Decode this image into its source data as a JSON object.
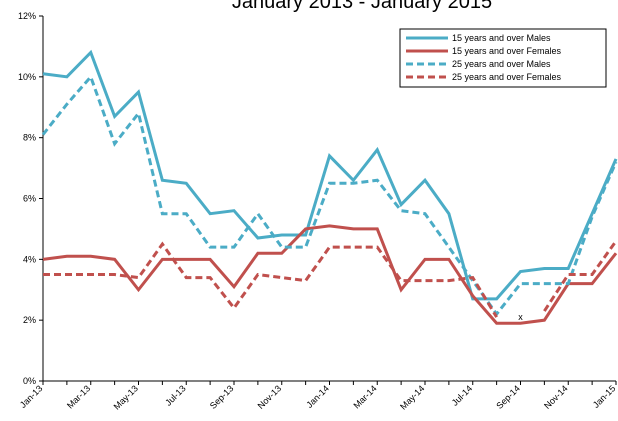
{
  "chart_data": {
    "type": "line",
    "title": "January 2013 - January 2015",
    "xlabel": "",
    "ylabel": "",
    "ylim": [
      0,
      12
    ],
    "ytick_labels": [
      "0%",
      "2%",
      "4%",
      "6%",
      "8%",
      "10%",
      "12%"
    ],
    "categories": [
      "Jan-13",
      "Feb-13",
      "Mar-13",
      "Apr-13",
      "May-13",
      "Jun-13",
      "Jul-13",
      "Aug-13",
      "Sep-13",
      "Oct-13",
      "Nov-13",
      "Dec-13",
      "Jan-14",
      "Feb-14",
      "Mar-14",
      "Apr-14",
      "May-14",
      "Jun-14",
      "Jul-14",
      "Aug-14",
      "Sep-14",
      "Oct-14",
      "Nov-14",
      "Dec-14",
      "Jan-15"
    ],
    "xtick_labels": [
      "Jan-13",
      "Mar-13",
      "May-13",
      "Jul-13",
      "Sep-13",
      "Nov-13",
      "Jan-14",
      "Mar-14",
      "May-14",
      "Jul-14",
      "Sep-14",
      "Nov-14",
      "Jan-15"
    ],
    "grid": false,
    "legend_position": "top-right",
    "series": [
      {
        "name": "15 years and over   Males",
        "color": "#4bacc6",
        "dashed": false,
        "values": [
          10.1,
          10.0,
          10.8,
          8.7,
          9.5,
          6.6,
          6.5,
          5.5,
          5.6,
          4.7,
          4.8,
          4.8,
          7.4,
          6.6,
          7.6,
          5.8,
          6.6,
          5.5,
          2.7,
          2.7,
          3.6,
          3.7,
          3.7,
          5.5,
          7.3
        ]
      },
      {
        "name": "15 years and over   Females",
        "color": "#c0504d",
        "dashed": false,
        "values": [
          4.0,
          4.1,
          4.1,
          4.0,
          3.0,
          4.0,
          4.0,
          4.0,
          3.1,
          4.2,
          4.2,
          5.0,
          5.1,
          5.0,
          5.0,
          3.0,
          4.0,
          4.0,
          2.8,
          1.9,
          1.9,
          2.0,
          3.2,
          3.2,
          4.2
        ]
      },
      {
        "name": "25 years and over   Males",
        "color": "#4bacc6",
        "dashed": true,
        "values": [
          8.1,
          9.1,
          10.0,
          7.8,
          8.8,
          5.5,
          5.5,
          4.4,
          4.4,
          5.5,
          4.4,
          4.4,
          6.5,
          6.5,
          6.6,
          5.6,
          5.5,
          4.4,
          3.3,
          2.2,
          3.2,
          3.2,
          3.2,
          5.4,
          7.2
        ]
      },
      {
        "name": "25 years and over   Females",
        "color": "#c0504d",
        "dashed": true,
        "values": [
          3.5,
          3.5,
          3.5,
          3.5,
          3.4,
          4.5,
          3.4,
          3.4,
          2.4,
          3.5,
          3.4,
          3.3,
          4.4,
          4.4,
          4.4,
          3.3,
          3.3,
          3.3,
          3.4,
          2.1,
          null,
          2.3,
          3.5,
          3.5,
          4.6
        ]
      }
    ],
    "annotations": [
      {
        "text": "x",
        "category": "Sep-14",
        "value": 2.1
      }
    ]
  }
}
